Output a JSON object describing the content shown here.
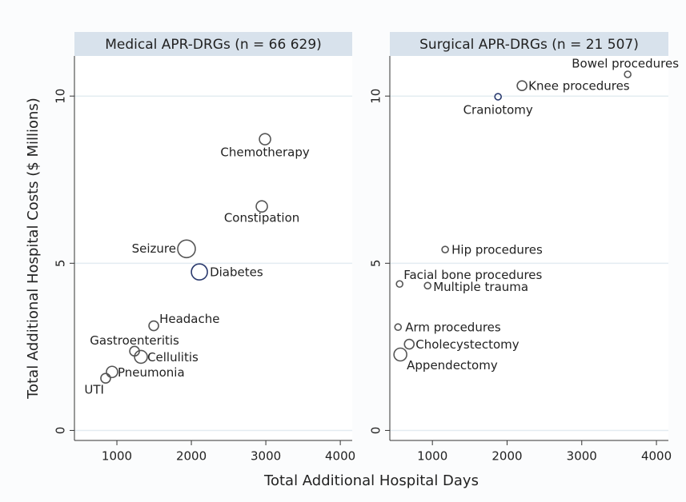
{
  "chart_data": [
    {
      "type": "scatter",
      "title": "Medical APR-DRGs (n = 66 629)",
      "x_label": "Total Additional Hospital Days",
      "y_label": "Total Additional Hospital Costs ($ Millions)",
      "labels": [
        "Chemotherapy",
        "Constipation",
        "Seizure",
        "Diabetes",
        "Headache",
        "Gastroenteritis",
        "Cellulitis",
        "Pneumonia",
        "UTI"
      ],
      "x": [
        2989,
        2946,
        1935,
        2108,
        1495,
        1237,
        1323,
        935,
        849
      ],
      "values": [
        8.71,
        6.7,
        5.43,
        4.74,
        3.13,
        2.37,
        2.2,
        1.75,
        1.56
      ],
      "sizes": [
        7,
        7,
        11,
        10,
        6,
        6,
        8,
        7,
        6
      ],
      "colors": [
        "#555555",
        "#555555",
        "#555555",
        "#2a3a6e",
        "#555555",
        "#555555",
        "#555555",
        "#555555",
        "#555555"
      ],
      "xlim": [
        430,
        4160
      ],
      "ylim": [
        -0.3,
        11.2
      ],
      "xticks": [
        1000,
        2000,
        3000,
        4000
      ],
      "yticks": [
        0,
        5,
        10
      ],
      "grid": true
    },
    {
      "type": "scatter",
      "title": "Surgical APR-DRGs (n = 21 507)",
      "labels": [
        "Bowel procedures",
        "Knee procedures",
        "Craniotomy",
        "Hip procedures",
        "Facial bone procedures",
        "Multiple trauma",
        "Arm procedures",
        "Cholecystectomy",
        "Appendectomy"
      ],
      "x": [
        3615,
        2200,
        1879,
        1171,
        561,
        936,
        540,
        690,
        571
      ],
      "values": [
        10.65,
        10.31,
        9.98,
        5.41,
        4.38,
        4.33,
        3.09,
        2.58,
        2.27
      ],
      "sizes": [
        4,
        6,
        4,
        4,
        4,
        4,
        4,
        6,
        8
      ],
      "colors": [
        "#555555",
        "#555555",
        "#2a3a6e",
        "#555555",
        "#555555",
        "#555555",
        "#555555",
        "#555555",
        "#555555"
      ],
      "xlim": [
        430,
        4160
      ],
      "ylim": [
        -0.3,
        11.2
      ],
      "xticks": [
        1000,
        2000,
        3000,
        4000
      ],
      "yticks": [
        0,
        5,
        10
      ],
      "grid": true
    }
  ]
}
